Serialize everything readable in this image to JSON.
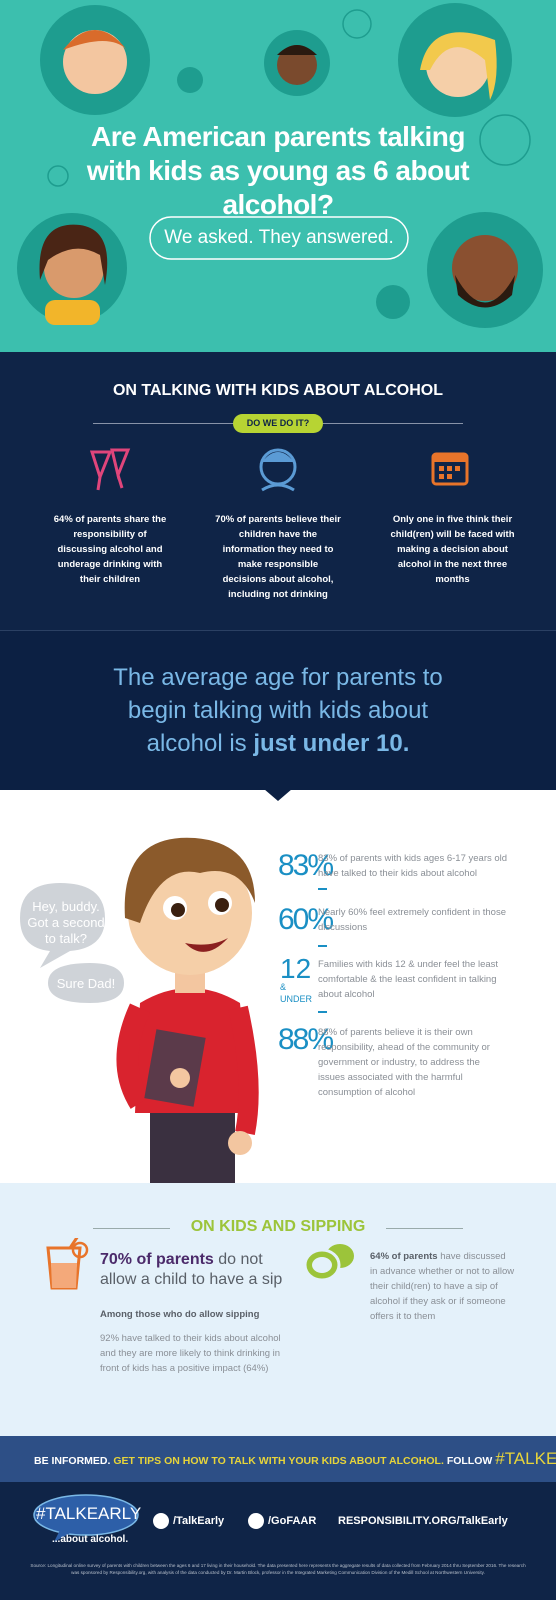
{
  "header": {
    "title": "Are American parents talking with kids as young as 6 about alcohol?",
    "subtitle": "We asked. They answered."
  },
  "talking": {
    "heading": "ON TALKING WITH KIDS ABOUT ALCOHOL",
    "badge": "DO WE DO IT?",
    "items": [
      "64% of parents share the responsibility of discussing alcohol and underage drinking with their children",
      "70% of parents believe their children have the information they need to make responsible decisions about alcohol, including not drinking",
      "Only one in five think their child(ren) will be faced with making a decision about alcohol in the next three months"
    ]
  },
  "average_age": {
    "text": "The average age for parents to begin talking with kids about alcohol is",
    "highlight": "just under 10."
  },
  "conversation": {
    "dad": "Hey, buddy. Got a second to talk?",
    "kid": "Sure Dad!"
  },
  "stats": [
    {
      "figure": "83%",
      "text": "83% of parents with kids ages 6-17 years old have talked to their kids about alcohol"
    },
    {
      "figure": "60%",
      "text": "Nearly 60% feel extremely confident in those discussions"
    },
    {
      "figure": "12",
      "figure_note": "& UNDER",
      "text": "Families with kids 12 & under feel the least comfortable & the least confident in talking about alcohol"
    },
    {
      "figure": "88%",
      "text": "88% of parents believe it is their own responsibility, ahead of the community or government or industry, to address the issues associated with the harmful consumption of alcohol"
    }
  ],
  "sipping": {
    "heading": "ON KIDS AND SIPPING",
    "left": {
      "highlight": "70% of parents",
      "text": "do not allow a child to have a sip",
      "subheading": "Among those who do allow sipping",
      "detail": "92% have talked to their kids about alcohol and they are more likely to think drinking in front of kids has a positive impact (64%)"
    },
    "right": {
      "highlight": "64% of parents",
      "text": "have discussed in advance whether or not to allow their child(ren) to have a sip of alcohol if they ask or if someone offers it to them"
    }
  },
  "banner": {
    "lead": "BE INFORMED.",
    "tip": "GET TIPS ON HOW TO TALK WITH YOUR KIDS ABOUT ALCOHOL.",
    "follow": "FOLLOW",
    "hashtag": "#TALKEARLY"
  },
  "footer": {
    "logo": "#TALKEARLY",
    "tagline": "...about alcohol.",
    "twitter": "/TalkEarly",
    "pinterest": "/GoFAAR",
    "website": "RESPONSIBILITY.ORG/TalkEarly",
    "source": "Source: Longitudinal online survey of parents with children between the ages 6 and 17 living in their household. The data presented here represents the aggregate results of data collected from February 2014 thru September 2016. The research was sponsored by Responsibility.org, with analysis of the data conducted by Dr. Martin Block, professor in the Integrated Marketing Communication Division of the Medill School at Northwestern University."
  }
}
